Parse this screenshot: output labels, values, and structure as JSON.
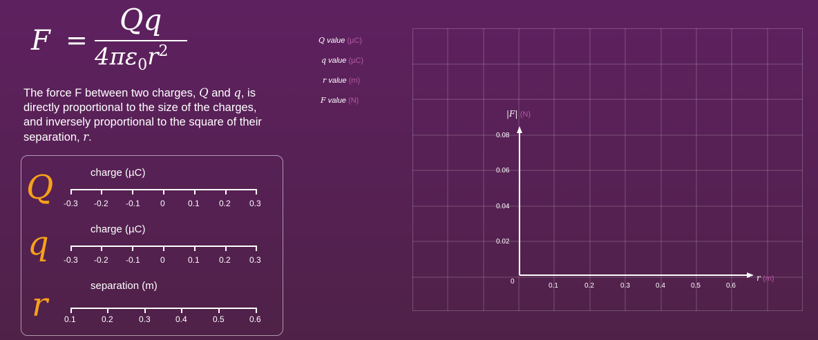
{
  "formula": {
    "lhs": "F",
    "equals": "=",
    "numerator": "Qq",
    "den_main": "4πε",
    "den_sub": "0",
    "den_r": "r",
    "den_sup": "2"
  },
  "description": {
    "line1": "The force F between two charges,",
    "Q": "Q",
    "and": "and",
    "q": "q",
    "line2_tail": ", is",
    "line2": "directly proportional to the size of the charges,",
    "line3": "and inversely proportional to the square of their",
    "line4": "separation,",
    "r": "r",
    "period": "."
  },
  "sliders": [
    {
      "letter": "Q",
      "label": "charge (µC)",
      "ticks": [
        "-0.3",
        "-0.2",
        "-0.1",
        "0",
        "0.1",
        "0.2",
        "0.3"
      ]
    },
    {
      "letter": "q",
      "label": "charge (µC)",
      "ticks": [
        "-0.3",
        "-0.2",
        "-0.1",
        "0",
        "0.1",
        "0.2",
        "0.3"
      ]
    },
    {
      "letter": "r",
      "label": "separation (m)",
      "ticks": [
        "0.1",
        "0.2",
        "0.3",
        "0.4",
        "0.5",
        "0.6"
      ]
    }
  ],
  "values": [
    {
      "label": "Q",
      "text": "value",
      "unit": "(µC)"
    },
    {
      "label": "q",
      "text": "value",
      "unit": "(µC)"
    },
    {
      "label": "r",
      "text": "value",
      "unit": "(m)"
    },
    {
      "label": "F",
      "text": "value",
      "unit": "(N)"
    }
  ],
  "graph": {
    "y_axis_label": "|F|",
    "y_unit": "(N)",
    "x_axis_label": "r",
    "x_unit": "(m)",
    "origin": "0",
    "y_ticks": [
      "0.02",
      "0.04",
      "0.06",
      "0.08"
    ],
    "x_ticks": [
      "0.1",
      "0.2",
      "0.3",
      "0.4",
      "0.5",
      "0.6"
    ],
    "colors": {
      "accent": "#f7a11a",
      "unit": "#b85aa5",
      "background": "#5a2158"
    }
  }
}
